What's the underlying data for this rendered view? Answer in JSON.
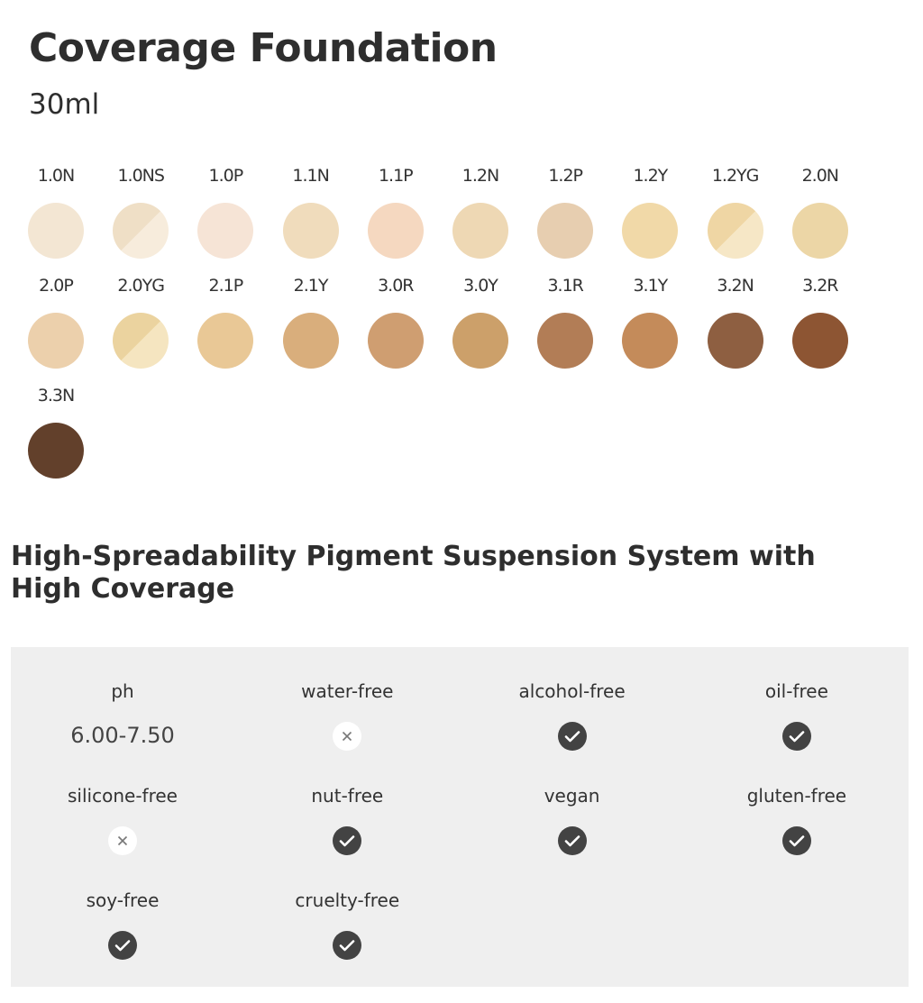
{
  "header": {
    "title": "Coverage Foundation",
    "subtitle": "30ml"
  },
  "shades": [
    {
      "name": "1.0N",
      "color": "#f3e6d3"
    },
    {
      "name": "1.0NS",
      "color": "#efdfc6",
      "color2": "#f7ecdc"
    },
    {
      "name": "1.0P",
      "color": "#f6e4d6"
    },
    {
      "name": "1.1N",
      "color": "#f0dcbc"
    },
    {
      "name": "1.1P",
      "color": "#f5d8c0"
    },
    {
      "name": "1.2N",
      "color": "#eed8b4"
    },
    {
      "name": "1.2P",
      "color": "#e7ceb0"
    },
    {
      "name": "1.2Y",
      "color": "#f1d9a8"
    },
    {
      "name": "1.2YG",
      "color": "#efd6a4",
      "color2": "#f6e7c6"
    },
    {
      "name": "2.0N",
      "color": "#ecd6a6"
    },
    {
      "name": "2.0P",
      "color": "#ecd0ac"
    },
    {
      "name": "2.0YG",
      "color": "#ebd39f",
      "color2": "#f5e5c0"
    },
    {
      "name": "2.1P",
      "color": "#e9c896"
    },
    {
      "name": "2.1Y",
      "color": "#d9ae7c"
    },
    {
      "name": "3.0R",
      "color": "#cf9e71"
    },
    {
      "name": "3.0Y",
      "color": "#cca06a"
    },
    {
      "name": "3.1R",
      "color": "#b27d56"
    },
    {
      "name": "3.1Y",
      "color": "#c48b5a"
    },
    {
      "name": "3.2N",
      "color": "#8e5f41"
    },
    {
      "name": "3.2R",
      "color": "#8d5533"
    },
    {
      "name": "3.3N",
      "color": "#62402b"
    }
  ],
  "headline": "High-Spreadability Pigment Suspension System with High Coverage",
  "attributes": [
    {
      "label": "ph",
      "value": "6.00-7.50"
    },
    {
      "label": "water-free",
      "free": false
    },
    {
      "label": "alcohol-free",
      "free": true
    },
    {
      "label": "oil-free",
      "free": true
    },
    {
      "label": "silicone-free",
      "free": false
    },
    {
      "label": "nut-free",
      "free": true
    },
    {
      "label": "vegan",
      "free": true
    },
    {
      "label": "gluten-free",
      "free": true
    },
    {
      "label": "soy-free",
      "free": true
    },
    {
      "label": "cruelty-free",
      "free": true
    }
  ]
}
